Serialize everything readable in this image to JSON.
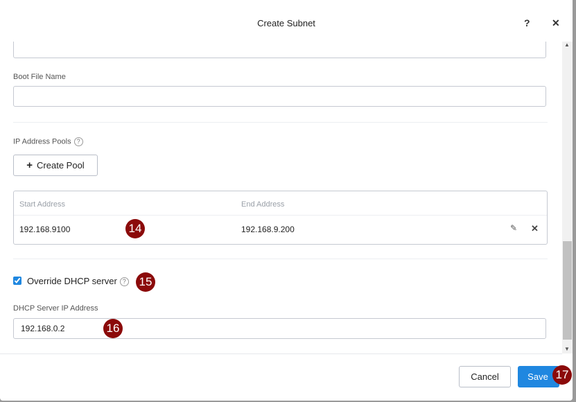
{
  "header": {
    "title": "Create Subnet",
    "help_icon": "?",
    "close_icon": "✕"
  },
  "form": {
    "top_field_value": "",
    "boot_file_label": "Boot File Name",
    "boot_file_value": "",
    "ip_pools_label": "IP Address Pools",
    "create_pool_label": "Create Pool",
    "pools_table": {
      "columns": [
        "Start Address",
        "End Address"
      ],
      "rows": [
        {
          "start": "192.168.9100",
          "end": "192.168.9.200"
        }
      ]
    },
    "override_dhcp_label": "Override DHCP server",
    "override_dhcp_checked": true,
    "dhcp_ip_label": "DHCP Server IP Address",
    "dhcp_ip_value": "192.168.0.2"
  },
  "annotations": [
    "14",
    "15",
    "16",
    "17"
  ],
  "footer": {
    "cancel_label": "Cancel",
    "save_label": "Save"
  },
  "colors": {
    "primary": "#1f87e0",
    "badge": "#8b0a0a"
  }
}
